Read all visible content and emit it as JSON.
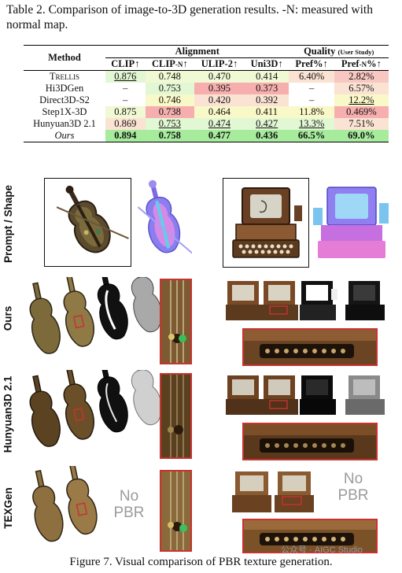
{
  "caption_top": "Table 2. Comparison of image-to-3D generation results. -N: measured with normal map.",
  "table": {
    "headers": {
      "method": "Method",
      "alignment": "Alignment",
      "quality": "Quality",
      "quality_note": "(User Study)",
      "clip": "CLIP↑",
      "clip_n_main": "CLIP",
      "clip_n_sub": "-N",
      "clip_n_arrow": "↑",
      "ulip2": "ULIP-2↑",
      "uni3d": "Uni3D↑",
      "pref": "Pref%↑",
      "pref_n_main": "Pref",
      "pref_n_sub": "-N",
      "pref_n_arrow": "%↑"
    },
    "rows": [
      {
        "method": "Trellis",
        "clip": "0.876",
        "clip_n": "0.748",
        "ulip2": "0.470",
        "uni3d": "0.414",
        "pref": "6.40%",
        "pref_n": "2.82%"
      },
      {
        "method": "Hi3DGen",
        "clip": "–",
        "clip_n": "0.753",
        "ulip2": "0.395",
        "uni3d": "0.373",
        "pref": "–",
        "pref_n": "6.57%"
      },
      {
        "method": "Direct3D-S2",
        "clip": "–",
        "clip_n": "0.746",
        "ulip2": "0.420",
        "uni3d": "0.392",
        "pref": "–",
        "pref_n": "12.2%"
      },
      {
        "method": "Step1X-3D",
        "clip": "0.875",
        "clip_n": "0.738",
        "ulip2": "0.464",
        "uni3d": "0.411",
        "pref": "11.8%",
        "pref_n": "0.469%"
      },
      {
        "method": "Hunyuan3D 2.1",
        "clip": "0.869",
        "clip_n": "0.753",
        "ulip2": "0.474",
        "uni3d": "0.427",
        "pref": "13.3%",
        "pref_n": "7.51%"
      },
      {
        "method": "Ours",
        "clip": "0.894",
        "clip_n": "0.758",
        "ulip2": "0.477",
        "uni3d": "0.436",
        "pref": "66.5%",
        "pref_n": "69.0%"
      }
    ]
  },
  "figure": {
    "row_labels": [
      "Prompt / Shape",
      "Ours",
      "Hunyuan3D 2.1",
      "TEXGen"
    ],
    "no_pbr_line1": "No",
    "no_pbr_line2": "PBR",
    "watermark": "公众号 · AIGC Studio"
  },
  "caption_bottom": "Figure 7. Visual comparison of PBR texture generation.",
  "colors": {
    "green_strong": "#a6ec9c",
    "green_mid": "#c6f1b8",
    "green_light": "#e2f7d4",
    "yellow": "#f9f8c8",
    "peach": "#fbe3d3",
    "red_light": "#f8c7c2",
    "red_strong": "#f6aeae",
    "frame_red": "#c8322f"
  }
}
